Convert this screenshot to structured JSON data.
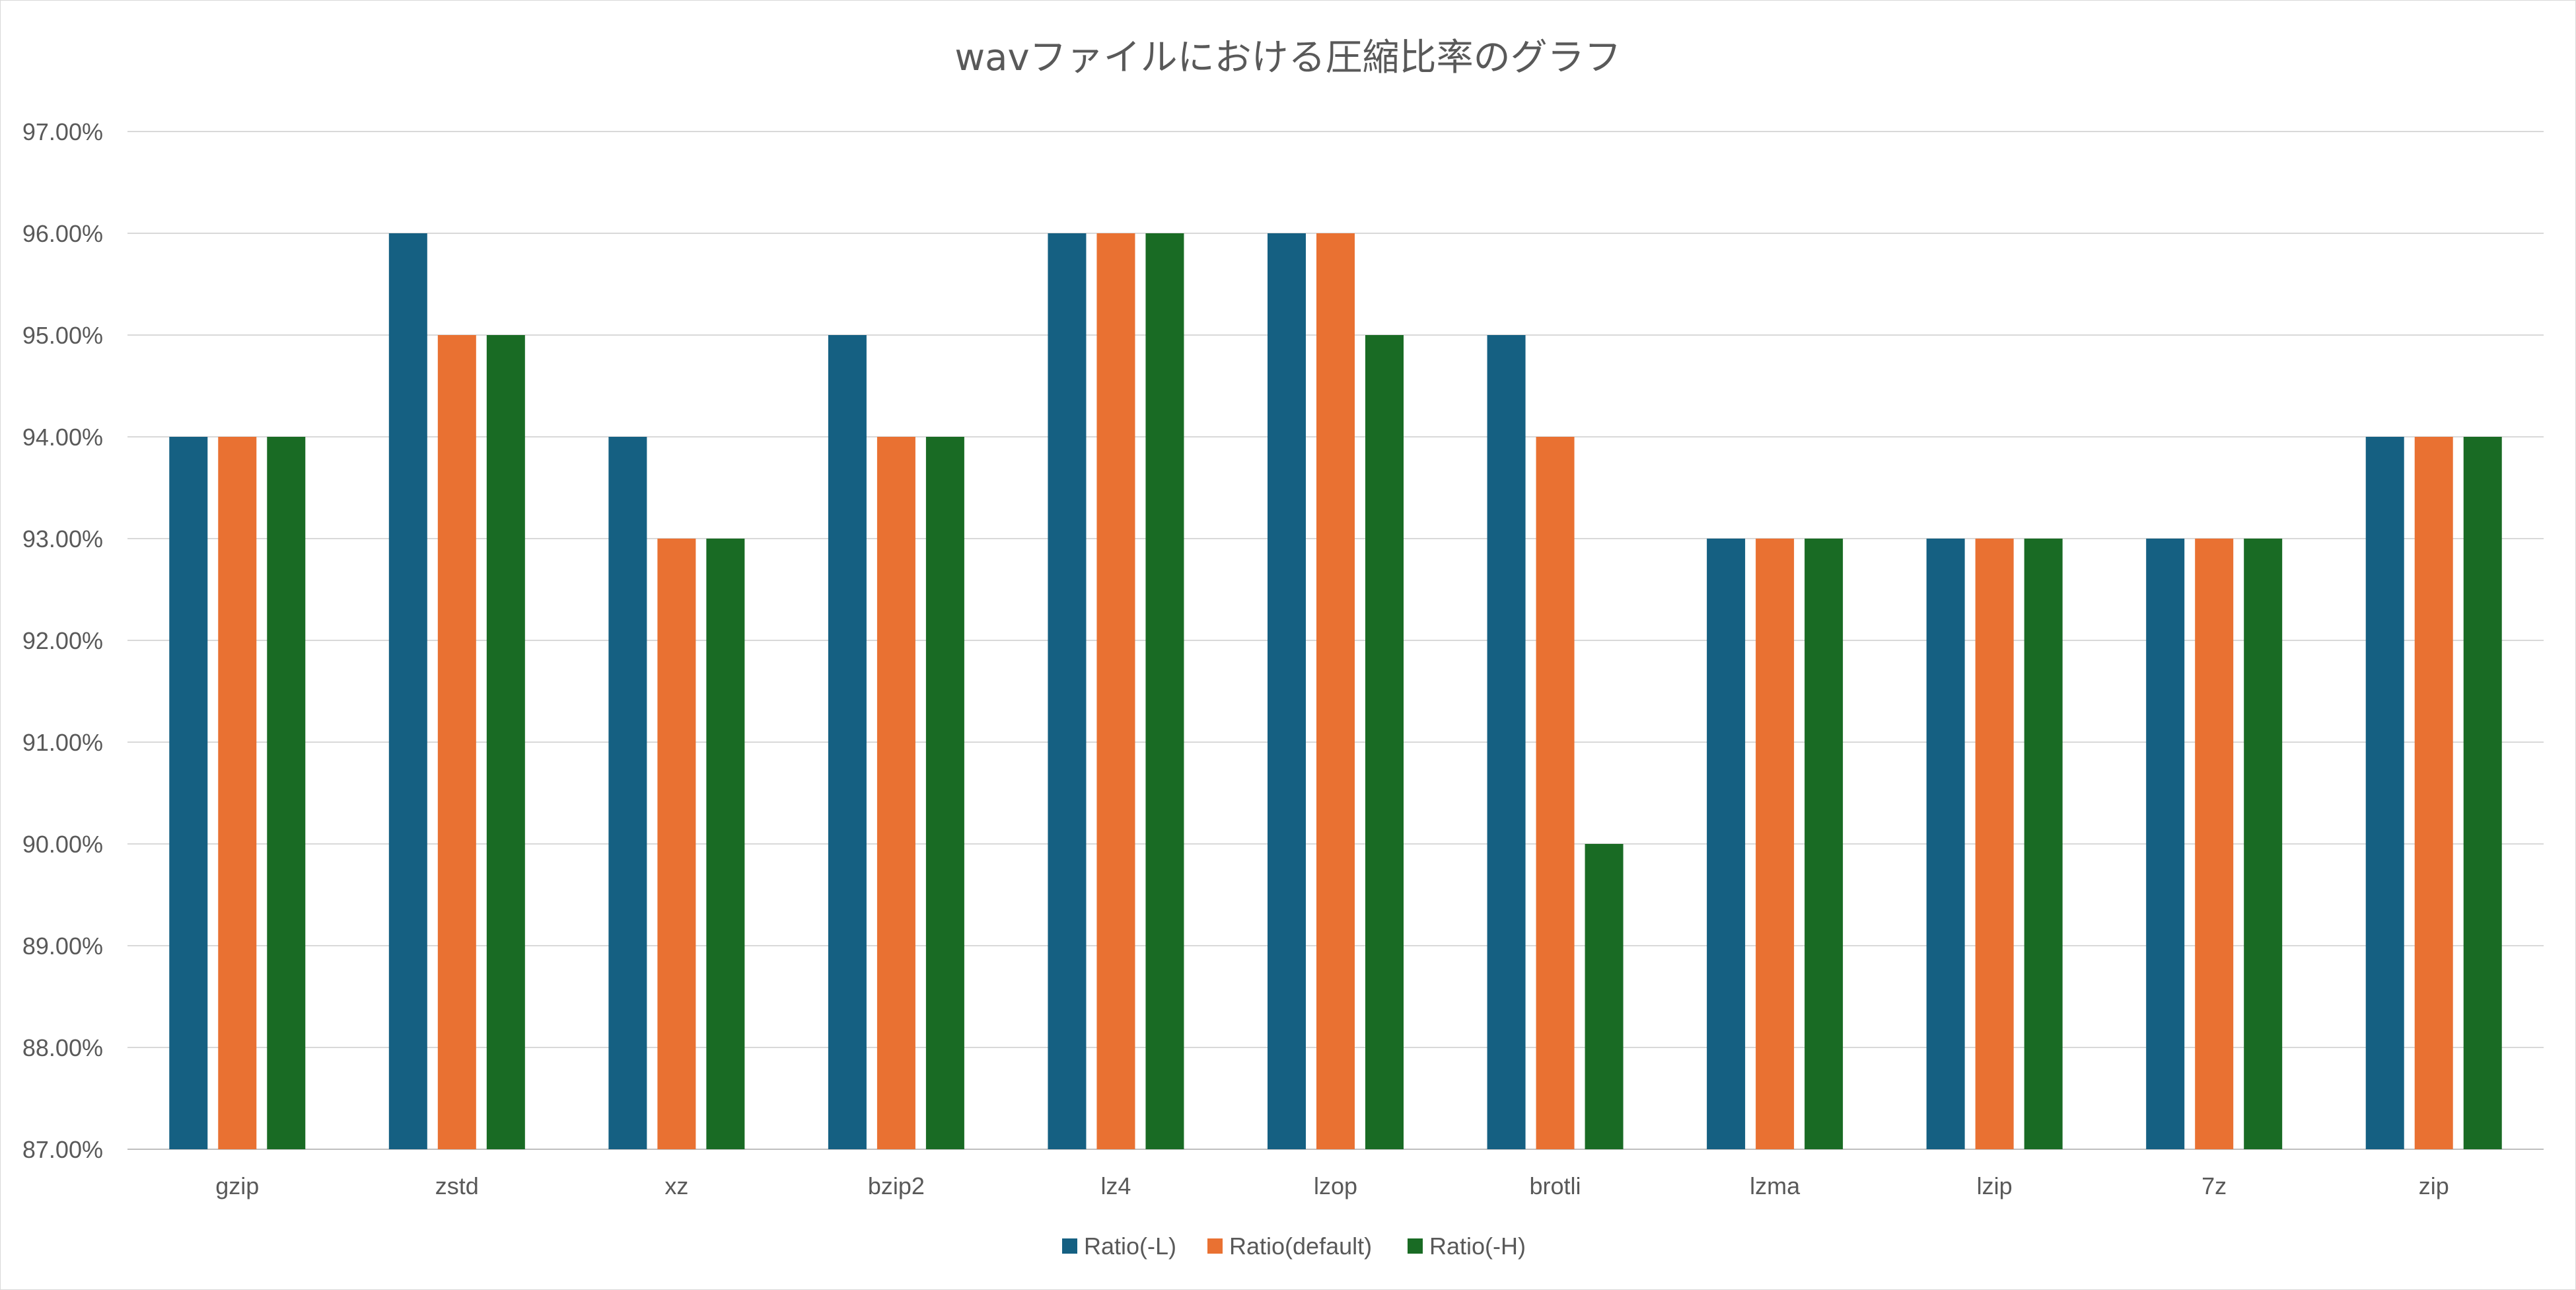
{
  "chart_data": {
    "type": "bar",
    "title": "wavファイルにおける圧縮比率のグラフ",
    "xlabel": "",
    "ylabel": "",
    "categories": [
      "gzip",
      "zstd",
      "xz",
      "bzip2",
      "lz4",
      "lzop",
      "brotli",
      "lzma",
      "lzip",
      "7z",
      "zip"
    ],
    "series": [
      {
        "name": "Ratio(-L)",
        "color": "#156082",
        "values": [
          94,
          96,
          94,
          95,
          96,
          96,
          95,
          93,
          93,
          93,
          94
        ]
      },
      {
        "name": "Ratio(default)",
        "color": "#E97132",
        "values": [
          94,
          95,
          93,
          94,
          96,
          96,
          94,
          93,
          93,
          93,
          94
        ]
      },
      {
        "name": "Ratio(-H)",
        "color": "#196B24",
        "values": [
          94,
          95,
          93,
          94,
          96,
          95,
          90,
          93,
          93,
          93,
          94
        ]
      }
    ],
    "yticks": [
      "87.00%",
      "88.00%",
      "89.00%",
      "90.00%",
      "91.00%",
      "92.00%",
      "93.00%",
      "94.00%",
      "95.00%",
      "96.00%",
      "97.00%"
    ],
    "ylim": [
      87,
      97
    ],
    "grid": true,
    "legend_position": "bottom"
  }
}
